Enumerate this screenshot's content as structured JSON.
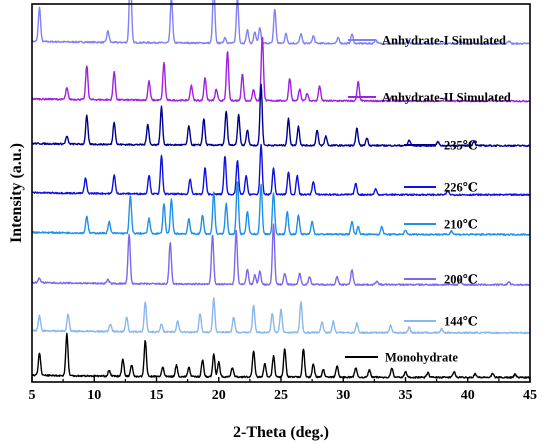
{
  "chart_data": {
    "type": "line",
    "xlabel": "2-Theta (deg.)",
    "ylabel": "Intensity (a.u.)",
    "xlim": [
      5,
      45
    ],
    "xticks": [
      5,
      10,
      15,
      20,
      25,
      30,
      35,
      40,
      45
    ],
    "grid": false,
    "legend_placement": "inline-right-of-each-trace",
    "series": [
      {
        "name": "Anhydrate-I Simulated",
        "color": "#8080f0",
        "baseline": 0.895,
        "peaks": [
          [
            5.6,
            0.09
          ],
          [
            11.1,
            0.03
          ],
          [
            12.9,
            0.19
          ],
          [
            16.2,
            0.12
          ],
          [
            19.6,
            0.15
          ],
          [
            20.5,
            0.015
          ],
          [
            21.5,
            0.12
          ],
          [
            22.3,
            0.035
          ],
          [
            22.9,
            0.03
          ],
          [
            23.3,
            0.04
          ],
          [
            24.5,
            0.09
          ],
          [
            25.4,
            0.025
          ],
          [
            26.6,
            0.025
          ],
          [
            27.6,
            0.02
          ],
          [
            29.6,
            0.015
          ],
          [
            30.7,
            0.025
          ],
          [
            32.6,
            0.01
          ],
          [
            35.2,
            0.008
          ],
          [
            39.4,
            0.01
          ],
          [
            43.3,
            0.008
          ]
        ]
      },
      {
        "name": "Anhydrate-II Simulated",
        "color": "#a020e0",
        "baseline": 0.743,
        "peaks": [
          [
            7.8,
            0.03
          ],
          [
            9.4,
            0.09
          ],
          [
            11.6,
            0.075
          ],
          [
            14.4,
            0.05
          ],
          [
            15.6,
            0.1
          ],
          [
            17.8,
            0.04
          ],
          [
            18.9,
            0.06
          ],
          [
            19.8,
            0.03
          ],
          [
            20.7,
            0.13
          ],
          [
            21.9,
            0.07
          ],
          [
            22.8,
            0.03
          ],
          [
            23.5,
            0.17
          ],
          [
            25.7,
            0.06
          ],
          [
            26.5,
            0.03
          ],
          [
            27.1,
            0.02
          ],
          [
            28.1,
            0.04
          ],
          [
            31.2,
            0.05
          ],
          [
            33.9,
            0.01
          ],
          [
            38.2,
            0.008
          ],
          [
            41.9,
            0.008
          ]
        ]
      },
      {
        "name": "235℃",
        "color": "#000090",
        "baseline": 0.625,
        "peaks": [
          [
            7.8,
            0.02
          ],
          [
            9.4,
            0.075
          ],
          [
            11.6,
            0.06
          ],
          [
            14.3,
            0.055
          ],
          [
            15.4,
            0.1
          ],
          [
            17.6,
            0.05
          ],
          [
            18.8,
            0.07
          ],
          [
            20.6,
            0.09
          ],
          [
            21.6,
            0.08
          ],
          [
            22.3,
            0.04
          ],
          [
            23.4,
            0.16
          ],
          [
            25.6,
            0.07
          ],
          [
            26.4,
            0.05
          ],
          [
            27.9,
            0.04
          ],
          [
            28.6,
            0.025
          ],
          [
            31.1,
            0.045
          ],
          [
            31.9,
            0.02
          ],
          [
            35.3,
            0.015
          ],
          [
            37.6,
            0.01
          ],
          [
            40.5,
            0.012
          ]
        ]
      },
      {
        "name": "226℃",
        "color": "#1010e0",
        "baseline": 0.495,
        "peaks": [
          [
            9.3,
            0.04
          ],
          [
            11.6,
            0.05
          ],
          [
            14.4,
            0.05
          ],
          [
            15.4,
            0.1
          ],
          [
            17.7,
            0.04
          ],
          [
            18.9,
            0.07
          ],
          [
            20.5,
            0.1
          ],
          [
            21.5,
            0.09
          ],
          [
            22.2,
            0.05
          ],
          [
            23.4,
            0.13
          ],
          [
            24.4,
            0.07
          ],
          [
            25.6,
            0.06
          ],
          [
            26.3,
            0.05
          ],
          [
            27.6,
            0.035
          ],
          [
            31.0,
            0.03
          ],
          [
            32.6,
            0.015
          ],
          [
            38.4,
            0.01
          ]
        ]
      },
      {
        "name": "210℃",
        "color": "#1e90e8",
        "baseline": 0.39,
        "peaks": [
          [
            9.4,
            0.045
          ],
          [
            11.2,
            0.03
          ],
          [
            12.9,
            0.1
          ],
          [
            14.4,
            0.04
          ],
          [
            15.6,
            0.08
          ],
          [
            16.2,
            0.09
          ],
          [
            17.6,
            0.04
          ],
          [
            18.7,
            0.05
          ],
          [
            19.6,
            0.11
          ],
          [
            20.6,
            0.08
          ],
          [
            21.5,
            0.14
          ],
          [
            22.3,
            0.06
          ],
          [
            23.4,
            0.13
          ],
          [
            24.4,
            0.11
          ],
          [
            25.5,
            0.06
          ],
          [
            26.4,
            0.05
          ],
          [
            27.5,
            0.035
          ],
          [
            30.7,
            0.035
          ],
          [
            31.2,
            0.02
          ],
          [
            33.1,
            0.02
          ],
          [
            35.0,
            0.01
          ],
          [
            38.7,
            0.01
          ]
        ]
      },
      {
        "name": "200℃",
        "color": "#7b68ee",
        "baseline": 0.257,
        "peaks": [
          [
            5.6,
            0.012
          ],
          [
            11.1,
            0.01
          ],
          [
            12.8,
            0.13
          ],
          [
            16.1,
            0.11
          ],
          [
            19.5,
            0.13
          ],
          [
            21.4,
            0.14
          ],
          [
            22.3,
            0.04
          ],
          [
            22.9,
            0.025
          ],
          [
            23.3,
            0.035
          ],
          [
            24.4,
            0.16
          ],
          [
            25.3,
            0.03
          ],
          [
            26.5,
            0.03
          ],
          [
            27.3,
            0.02
          ],
          [
            29.5,
            0.02
          ],
          [
            30.7,
            0.04
          ],
          [
            32.7,
            0.01
          ],
          [
            39.4,
            0.015
          ],
          [
            43.3,
            0.008
          ]
        ]
      },
      {
        "name": "144℃",
        "color": "#87b8ee",
        "baseline": 0.13,
        "peaks": [
          [
            5.6,
            0.04
          ],
          [
            7.9,
            0.045
          ],
          [
            11.3,
            0.02
          ],
          [
            12.6,
            0.04
          ],
          [
            14.1,
            0.08
          ],
          [
            15.4,
            0.02
          ],
          [
            16.7,
            0.03
          ],
          [
            18.5,
            0.05
          ],
          [
            19.6,
            0.09
          ],
          [
            21.2,
            0.04
          ],
          [
            22.8,
            0.07
          ],
          [
            24.3,
            0.05
          ],
          [
            25.0,
            0.06
          ],
          [
            26.6,
            0.08
          ],
          [
            28.3,
            0.03
          ],
          [
            29.2,
            0.03
          ],
          [
            31.1,
            0.025
          ],
          [
            33.8,
            0.02
          ],
          [
            35.3,
            0.015
          ],
          [
            37.9,
            0.01
          ]
        ]
      },
      {
        "name": "Monohydrate",
        "color": "#000000",
        "baseline": 0.012,
        "peaks": [
          [
            5.6,
            0.06
          ],
          [
            7.8,
            0.11
          ],
          [
            11.2,
            0.015
          ],
          [
            12.3,
            0.045
          ],
          [
            13.0,
            0.03
          ],
          [
            14.1,
            0.095
          ],
          [
            15.5,
            0.025
          ],
          [
            16.6,
            0.03
          ],
          [
            17.6,
            0.025
          ],
          [
            18.7,
            0.045
          ],
          [
            19.6,
            0.06
          ],
          [
            20.0,
            0.04
          ],
          [
            21.1,
            0.025
          ],
          [
            22.8,
            0.07
          ],
          [
            23.7,
            0.035
          ],
          [
            24.4,
            0.055
          ],
          [
            25.3,
            0.075
          ],
          [
            26.8,
            0.075
          ],
          [
            27.6,
            0.035
          ],
          [
            28.4,
            0.02
          ],
          [
            29.5,
            0.03
          ],
          [
            31.0,
            0.025
          ],
          [
            32.1,
            0.02
          ],
          [
            33.9,
            0.025
          ],
          [
            35.0,
            0.015
          ],
          [
            36.8,
            0.012
          ],
          [
            38.9,
            0.015
          ],
          [
            40.6,
            0.01
          ],
          [
            42.0,
            0.01
          ],
          [
            43.8,
            0.008
          ]
        ]
      }
    ]
  }
}
